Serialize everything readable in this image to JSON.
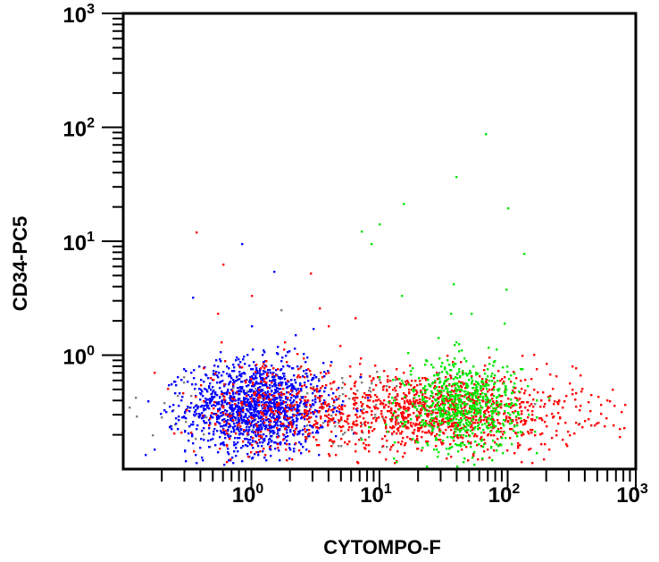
{
  "chart_data": {
    "type": "scatter",
    "title": "",
    "xlabel": "CYTOMPO-F",
    "ylabel": "CD34-PC5",
    "xscale": "log",
    "yscale": "log",
    "xlim": [
      0.1,
      1000
    ],
    "ylim": [
      0.1,
      1000
    ],
    "grid": false,
    "legend": null,
    "x_ticks": [
      {
        "value": 1,
        "base": "10",
        "exp": "0"
      },
      {
        "value": 10,
        "base": "10",
        "exp": "1"
      },
      {
        "value": 100,
        "base": "10",
        "exp": "2"
      },
      {
        "value": 1000,
        "base": "10",
        "exp": "3"
      }
    ],
    "y_ticks": [
      {
        "value": 1,
        "base": "10",
        "exp": "0"
      },
      {
        "value": 10,
        "base": "10",
        "exp": "1"
      },
      {
        "value": 100,
        "base": "10",
        "exp": "2"
      },
      {
        "value": 1000,
        "base": "10",
        "exp": "3"
      }
    ],
    "series": [
      {
        "name": "blue population",
        "color": "#0000ff",
        "cluster": {
          "x_center": 1.1,
          "y_center": 0.35,
          "log_x_sd": 0.27,
          "log_y_sd": 0.2,
          "count": 1400
        },
        "outliers": [
          [
            0.85,
            9.5
          ],
          [
            1.5,
            5.4
          ],
          [
            0.35,
            3.2
          ],
          [
            2.2,
            1.5
          ],
          [
            1.0,
            1.8
          ]
        ]
      },
      {
        "name": "red population",
        "color": "#ff0000",
        "cluster": {
          "x_center": 30,
          "y_center": 0.32,
          "log_x_sd": 0.55,
          "log_y_sd": 0.17,
          "count": 1200
        },
        "extra_cluster": {
          "x_center": 1.4,
          "y_center": 0.33,
          "log_x_sd": 0.3,
          "log_y_sd": 0.2,
          "count": 300
        },
        "outliers": [
          [
            0.37,
            12
          ],
          [
            0.6,
            6.2
          ],
          [
            1.0,
            3.3
          ],
          [
            2.9,
            5.2
          ],
          [
            3.4,
            2.6
          ],
          [
            6.5,
            2.1
          ],
          [
            0.55,
            2.3
          ],
          [
            0.58,
            1.3
          ],
          [
            4.0,
            1.8
          ],
          [
            130,
            1.0
          ],
          [
            320,
            0.8
          ],
          [
            450,
            0.45
          ]
        ]
      },
      {
        "name": "green population",
        "color": "#00e600",
        "cluster": {
          "x_center": 45,
          "y_center": 0.36,
          "log_x_sd": 0.22,
          "log_y_sd": 0.2,
          "count": 700
        },
        "outliers": [
          [
            68,
            88
          ],
          [
            40,
            37
          ],
          [
            15.5,
            21.5
          ],
          [
            100,
            19.5
          ],
          [
            10,
            14
          ],
          [
            7.3,
            12.3
          ],
          [
            8.7,
            9.4
          ],
          [
            135,
            7.7
          ],
          [
            38,
            4.2
          ],
          [
            15,
            3.3
          ],
          [
            97,
            3.8
          ],
          [
            36,
            2.3
          ],
          [
            52,
            2.3
          ],
          [
            95,
            1.9
          ]
        ]
      },
      {
        "name": "gray population",
        "color": "#808080",
        "cluster": {
          "x_center": 3,
          "y_center": 0.35,
          "log_x_sd": 0.75,
          "log_y_sd": 0.2,
          "count": 160
        },
        "outliers": [
          [
            0.17,
            0.2
          ],
          [
            1.7,
            2.5
          ]
        ]
      }
    ]
  }
}
